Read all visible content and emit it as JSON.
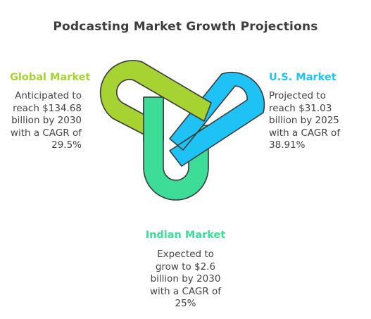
{
  "title": "Podcasting Market Growth Projections",
  "colors": {
    "global": "#a6d332",
    "us": "#1ec2f4",
    "india": "#3ddc97",
    "outline": "#3a3a3a"
  },
  "markets": {
    "global": {
      "heading": "Global Market",
      "lines": [
        "Anticipated to",
        "reach $134.68",
        "billion by 2030",
        "with a CAGR of",
        "29.5%"
      ]
    },
    "us": {
      "heading": "U.S. Market",
      "lines": [
        "Projected to",
        "reach $31.03",
        "billion by 2025",
        "with a CAGR of",
        "38.91%"
      ]
    },
    "india": {
      "heading": "Indian Market",
      "lines": [
        "Expected to",
        "grow to $2.6",
        "billion by 2030",
        "with a CAGR of",
        "25%"
      ]
    }
  }
}
